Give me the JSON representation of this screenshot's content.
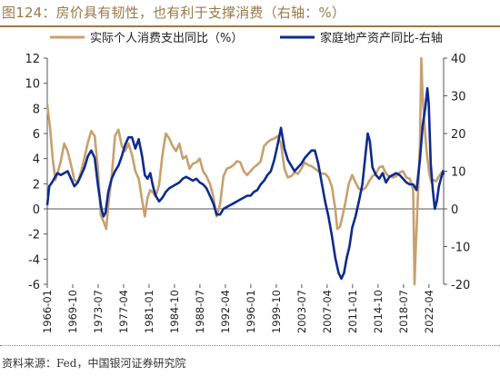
{
  "header": {
    "title": "图124：房价具有韧性，也有利于支撑消费（右轴：%）"
  },
  "footer": {
    "source": "资料来源：Fed，中国银河证券研究院"
  },
  "colors": {
    "consumption": "#c8a06e",
    "real_estate": "#0d2b8e",
    "accent": "#9a7a4a"
  },
  "chart_data": {
    "type": "line",
    "title": "图124：房价具有韧性，也有利于支撑消费（右轴：%）",
    "legend_position": "top",
    "grid": false,
    "x_ticks": [
      "1966-01",
      "1969-10",
      "1973-07",
      "1977-04",
      "1981-01",
      "1984-10",
      "1988-07",
      "1992-04",
      "1996-01",
      "1999-10",
      "2003-07",
      "2007-04",
      "2011-01",
      "2014-10",
      "2018-07",
      "2022-04"
    ],
    "x_range": [
      1966.0,
      2024.5
    ],
    "left_axis": {
      "range": [
        -6,
        12
      ],
      "ticks": [
        -6,
        -4,
        -2,
        0,
        2,
        4,
        6,
        8,
        10,
        12
      ]
    },
    "right_axis": {
      "range": [
        -20,
        40
      ],
      "ticks": [
        -20,
        -10,
        0,
        10,
        20,
        30,
        40
      ]
    },
    "series": [
      {
        "name": "实际个人消费支出同比（%）",
        "axis": "left",
        "points": [
          [
            1966.0,
            8.3
          ],
          [
            1966.4,
            6.5
          ],
          [
            1966.8,
            4.0
          ],
          [
            1967.2,
            2.3
          ],
          [
            1967.6,
            3.0
          ],
          [
            1968.0,
            3.8
          ],
          [
            1968.5,
            5.2
          ],
          [
            1969.0,
            4.6
          ],
          [
            1969.5,
            3.5
          ],
          [
            1970.0,
            2.3
          ],
          [
            1970.5,
            2.1
          ],
          [
            1971.0,
            3.0
          ],
          [
            1971.5,
            4.1
          ],
          [
            1972.0,
            5.3
          ],
          [
            1972.5,
            6.2
          ],
          [
            1973.0,
            5.8
          ],
          [
            1973.5,
            3.0
          ],
          [
            1973.9,
            -0.5
          ],
          [
            1974.3,
            -1.0
          ],
          [
            1974.7,
            -1.6
          ],
          [
            1975.1,
            0.8
          ],
          [
            1975.5,
            2.5
          ],
          [
            1976.0,
            5.8
          ],
          [
            1976.5,
            6.3
          ],
          [
            1977.0,
            5.0
          ],
          [
            1977.5,
            4.6
          ],
          [
            1978.0,
            5.2
          ],
          [
            1978.5,
            4.3
          ],
          [
            1979.0,
            3.0
          ],
          [
            1979.5,
            2.4
          ],
          [
            1980.0,
            0.7
          ],
          [
            1980.4,
            -0.6
          ],
          [
            1980.8,
            0.9
          ],
          [
            1981.2,
            1.5
          ],
          [
            1981.6,
            1.3
          ],
          [
            1982.0,
            1.0
          ],
          [
            1982.5,
            1.9
          ],
          [
            1983.0,
            4.3
          ],
          [
            1983.5,
            6.0
          ],
          [
            1984.0,
            5.6
          ],
          [
            1984.5,
            5.0
          ],
          [
            1985.0,
            4.6
          ],
          [
            1985.5,
            5.2
          ],
          [
            1986.0,
            4.0
          ],
          [
            1986.5,
            4.2
          ],
          [
            1987.0,
            3.2
          ],
          [
            1987.5,
            3.6
          ],
          [
            1988.0,
            3.7
          ],
          [
            1988.5,
            4.0
          ],
          [
            1989.0,
            3.0
          ],
          [
            1989.5,
            2.6
          ],
          [
            1990.0,
            2.0
          ],
          [
            1990.5,
            1.0
          ],
          [
            1991.0,
            -0.6
          ],
          [
            1991.5,
            0.4
          ],
          [
            1992.0,
            2.6
          ],
          [
            1992.5,
            3.2
          ],
          [
            1993.0,
            3.3
          ],
          [
            1993.5,
            3.5
          ],
          [
            1994.0,
            3.8
          ],
          [
            1994.5,
            3.7
          ],
          [
            1995.0,
            3.0
          ],
          [
            1995.5,
            2.7
          ],
          [
            1996.0,
            3.0
          ],
          [
            1996.5,
            3.3
          ],
          [
            1997.0,
            3.5
          ],
          [
            1997.5,
            3.8
          ],
          [
            1998.0,
            5.0
          ],
          [
            1998.5,
            5.3
          ],
          [
            1999.0,
            5.5
          ],
          [
            1999.5,
            5.6
          ],
          [
            2000.0,
            5.8
          ],
          [
            2000.5,
            5.2
          ],
          [
            2001.0,
            3.2
          ],
          [
            2001.5,
            2.5
          ],
          [
            2002.0,
            2.6
          ],
          [
            2002.5,
            2.9
          ],
          [
            2003.0,
            2.8
          ],
          [
            2003.5,
            3.2
          ],
          [
            2004.0,
            3.7
          ],
          [
            2004.5,
            3.5
          ],
          [
            2005.0,
            3.4
          ],
          [
            2005.5,
            3.2
          ],
          [
            2006.0,
            3.0
          ],
          [
            2006.5,
            2.8
          ],
          [
            2007.0,
            2.8
          ],
          [
            2007.5,
            2.5
          ],
          [
            2008.0,
            1.8
          ],
          [
            2008.5,
            0.0
          ],
          [
            2008.8,
            -1.6
          ],
          [
            2009.2,
            -1.4
          ],
          [
            2009.6,
            -0.5
          ],
          [
            2010.0,
            0.5
          ],
          [
            2010.5,
            2.0
          ],
          [
            2011.0,
            2.7
          ],
          [
            2011.5,
            2.1
          ],
          [
            2012.0,
            1.6
          ],
          [
            2012.5,
            1.5
          ],
          [
            2013.0,
            1.7
          ],
          [
            2013.5,
            2.2
          ],
          [
            2014.0,
            2.6
          ],
          [
            2014.5,
            2.8
          ],
          [
            2015.0,
            3.3
          ],
          [
            2015.5,
            3.4
          ],
          [
            2016.0,
            2.8
          ],
          [
            2016.5,
            2.6
          ],
          [
            2017.0,
            2.5
          ],
          [
            2017.5,
            2.6
          ],
          [
            2018.0,
            2.9
          ],
          [
            2018.5,
            3.0
          ],
          [
            2019.0,
            2.5
          ],
          [
            2019.5,
            2.4
          ],
          [
            2020.0,
            1.5
          ],
          [
            2020.2,
            -6.0
          ],
          [
            2020.4,
            -3.0
          ],
          [
            2020.7,
            1.0
          ],
          [
            2021.0,
            5.0
          ],
          [
            2021.2,
            12.0
          ],
          [
            2021.4,
            9.0
          ],
          [
            2021.7,
            6.5
          ],
          [
            2022.0,
            4.5
          ],
          [
            2022.4,
            2.8
          ],
          [
            2022.7,
            2.1
          ],
          [
            2023.0,
            2.3
          ],
          [
            2023.4,
            2.2
          ],
          [
            2023.8,
            2.6
          ],
          [
            2024.2,
            2.9
          ],
          [
            2024.5,
            2.6
          ]
        ]
      },
      {
        "name": "家庭地产资产同比-右轴",
        "axis": "right",
        "points": [
          [
            1966.0,
            1.0
          ],
          [
            1966.3,
            6.0
          ],
          [
            1966.7,
            7.0
          ],
          [
            1967.0,
            8.0
          ],
          [
            1967.5,
            9.5
          ],
          [
            1968.0,
            9.0
          ],
          [
            1968.5,
            9.5
          ],
          [
            1969.0,
            10.0
          ],
          [
            1969.5,
            8.0
          ],
          [
            1970.0,
            6.0
          ],
          [
            1970.5,
            7.0
          ],
          [
            1971.0,
            9.0
          ],
          [
            1971.5,
            11.0
          ],
          [
            1972.0,
            14.0
          ],
          [
            1972.5,
            15.5
          ],
          [
            1973.0,
            13.5
          ],
          [
            1973.5,
            6.0
          ],
          [
            1974.0,
            0.0
          ],
          [
            1974.3,
            -2.0
          ],
          [
            1974.6,
            -1.0
          ],
          [
            1975.0,
            4.5
          ],
          [
            1975.5,
            8.0
          ],
          [
            1976.0,
            10.0
          ],
          [
            1976.5,
            11.5
          ],
          [
            1977.0,
            14.0
          ],
          [
            1977.5,
            17.0
          ],
          [
            1978.0,
            19.0
          ],
          [
            1978.5,
            19.0
          ],
          [
            1979.0,
            16.0
          ],
          [
            1979.5,
            18.5
          ],
          [
            1980.0,
            14.0
          ],
          [
            1980.4,
            9.0
          ],
          [
            1980.8,
            8.0
          ],
          [
            1981.2,
            9.5
          ],
          [
            1981.6,
            6.0
          ],
          [
            1982.0,
            3.5
          ],
          [
            1982.5,
            2.0
          ],
          [
            1983.0,
            3.0
          ],
          [
            1983.5,
            4.5
          ],
          [
            1984.0,
            5.5
          ],
          [
            1984.5,
            6.0
          ],
          [
            1985.0,
            6.5
          ],
          [
            1985.5,
            7.0
          ],
          [
            1986.0,
            8.0
          ],
          [
            1986.5,
            8.5
          ],
          [
            1987.0,
            8.0
          ],
          [
            1987.5,
            7.5
          ],
          [
            1988.0,
            8.0
          ],
          [
            1988.5,
            7.0
          ],
          [
            1989.0,
            6.5
          ],
          [
            1989.5,
            5.5
          ],
          [
            1990.0,
            3.5
          ],
          [
            1990.5,
            1.5
          ],
          [
            1991.0,
            -1.5
          ],
          [
            1991.5,
            -1.5
          ],
          [
            1992.0,
            0.0
          ],
          [
            1992.5,
            0.5
          ],
          [
            1993.0,
            1.0
          ],
          [
            1993.5,
            1.5
          ],
          [
            1994.0,
            2.0
          ],
          [
            1994.5,
            2.5
          ],
          [
            1995.0,
            3.0
          ],
          [
            1995.5,
            3.5
          ],
          [
            1996.0,
            3.5
          ],
          [
            1996.5,
            4.5
          ],
          [
            1997.0,
            5.0
          ],
          [
            1997.5,
            6.5
          ],
          [
            1998.0,
            7.5
          ],
          [
            1998.5,
            9.0
          ],
          [
            1999.0,
            10.0
          ],
          [
            1999.5,
            13.0
          ],
          [
            2000.0,
            17.0
          ],
          [
            2000.5,
            21.5
          ],
          [
            2001.0,
            16.0
          ],
          [
            2001.5,
            13.0
          ],
          [
            2002.0,
            11.5
          ],
          [
            2002.5,
            10.0
          ],
          [
            2003.0,
            11.0
          ],
          [
            2003.5,
            12.0
          ],
          [
            2004.0,
            13.5
          ],
          [
            2004.5,
            14.5
          ],
          [
            2005.0,
            15.5
          ],
          [
            2005.5,
            15.5
          ],
          [
            2006.0,
            12.0
          ],
          [
            2006.5,
            7.0
          ],
          [
            2007.0,
            2.0
          ],
          [
            2007.5,
            -2.0
          ],
          [
            2008.0,
            -7.0
          ],
          [
            2008.5,
            -13.0
          ],
          [
            2009.0,
            -17.0
          ],
          [
            2009.4,
            -18.5
          ],
          [
            2009.8,
            -17.0
          ],
          [
            2010.2,
            -13.0
          ],
          [
            2010.6,
            -10.0
          ],
          [
            2011.0,
            -5.0
          ],
          [
            2011.5,
            -2.0
          ],
          [
            2012.0,
            2.0
          ],
          [
            2012.5,
            6.5
          ],
          [
            2013.0,
            15.0
          ],
          [
            2013.3,
            20.0
          ],
          [
            2013.6,
            18.0
          ],
          [
            2014.0,
            11.0
          ],
          [
            2014.5,
            9.0
          ],
          [
            2015.0,
            8.0
          ],
          [
            2015.5,
            9.5
          ],
          [
            2016.0,
            7.0
          ],
          [
            2016.5,
            8.5
          ],
          [
            2017.0,
            9.0
          ],
          [
            2017.5,
            9.5
          ],
          [
            2018.0,
            9.0
          ],
          [
            2018.5,
            8.0
          ],
          [
            2019.0,
            7.0
          ],
          [
            2019.5,
            6.5
          ],
          [
            2020.0,
            6.5
          ],
          [
            2020.5,
            5.0
          ],
          [
            2021.0,
            13.0
          ],
          [
            2021.4,
            22.0
          ],
          [
            2021.8,
            27.0
          ],
          [
            2022.1,
            32.0
          ],
          [
            2022.3,
            28.0
          ],
          [
            2022.6,
            12.0
          ],
          [
            2022.9,
            5.0
          ],
          [
            2023.2,
            0.0
          ],
          [
            2023.5,
            2.0
          ],
          [
            2023.8,
            6.0
          ],
          [
            2024.1,
            8.0
          ],
          [
            2024.4,
            10.0
          ],
          [
            2024.5,
            9.0
          ]
        ]
      }
    ]
  }
}
